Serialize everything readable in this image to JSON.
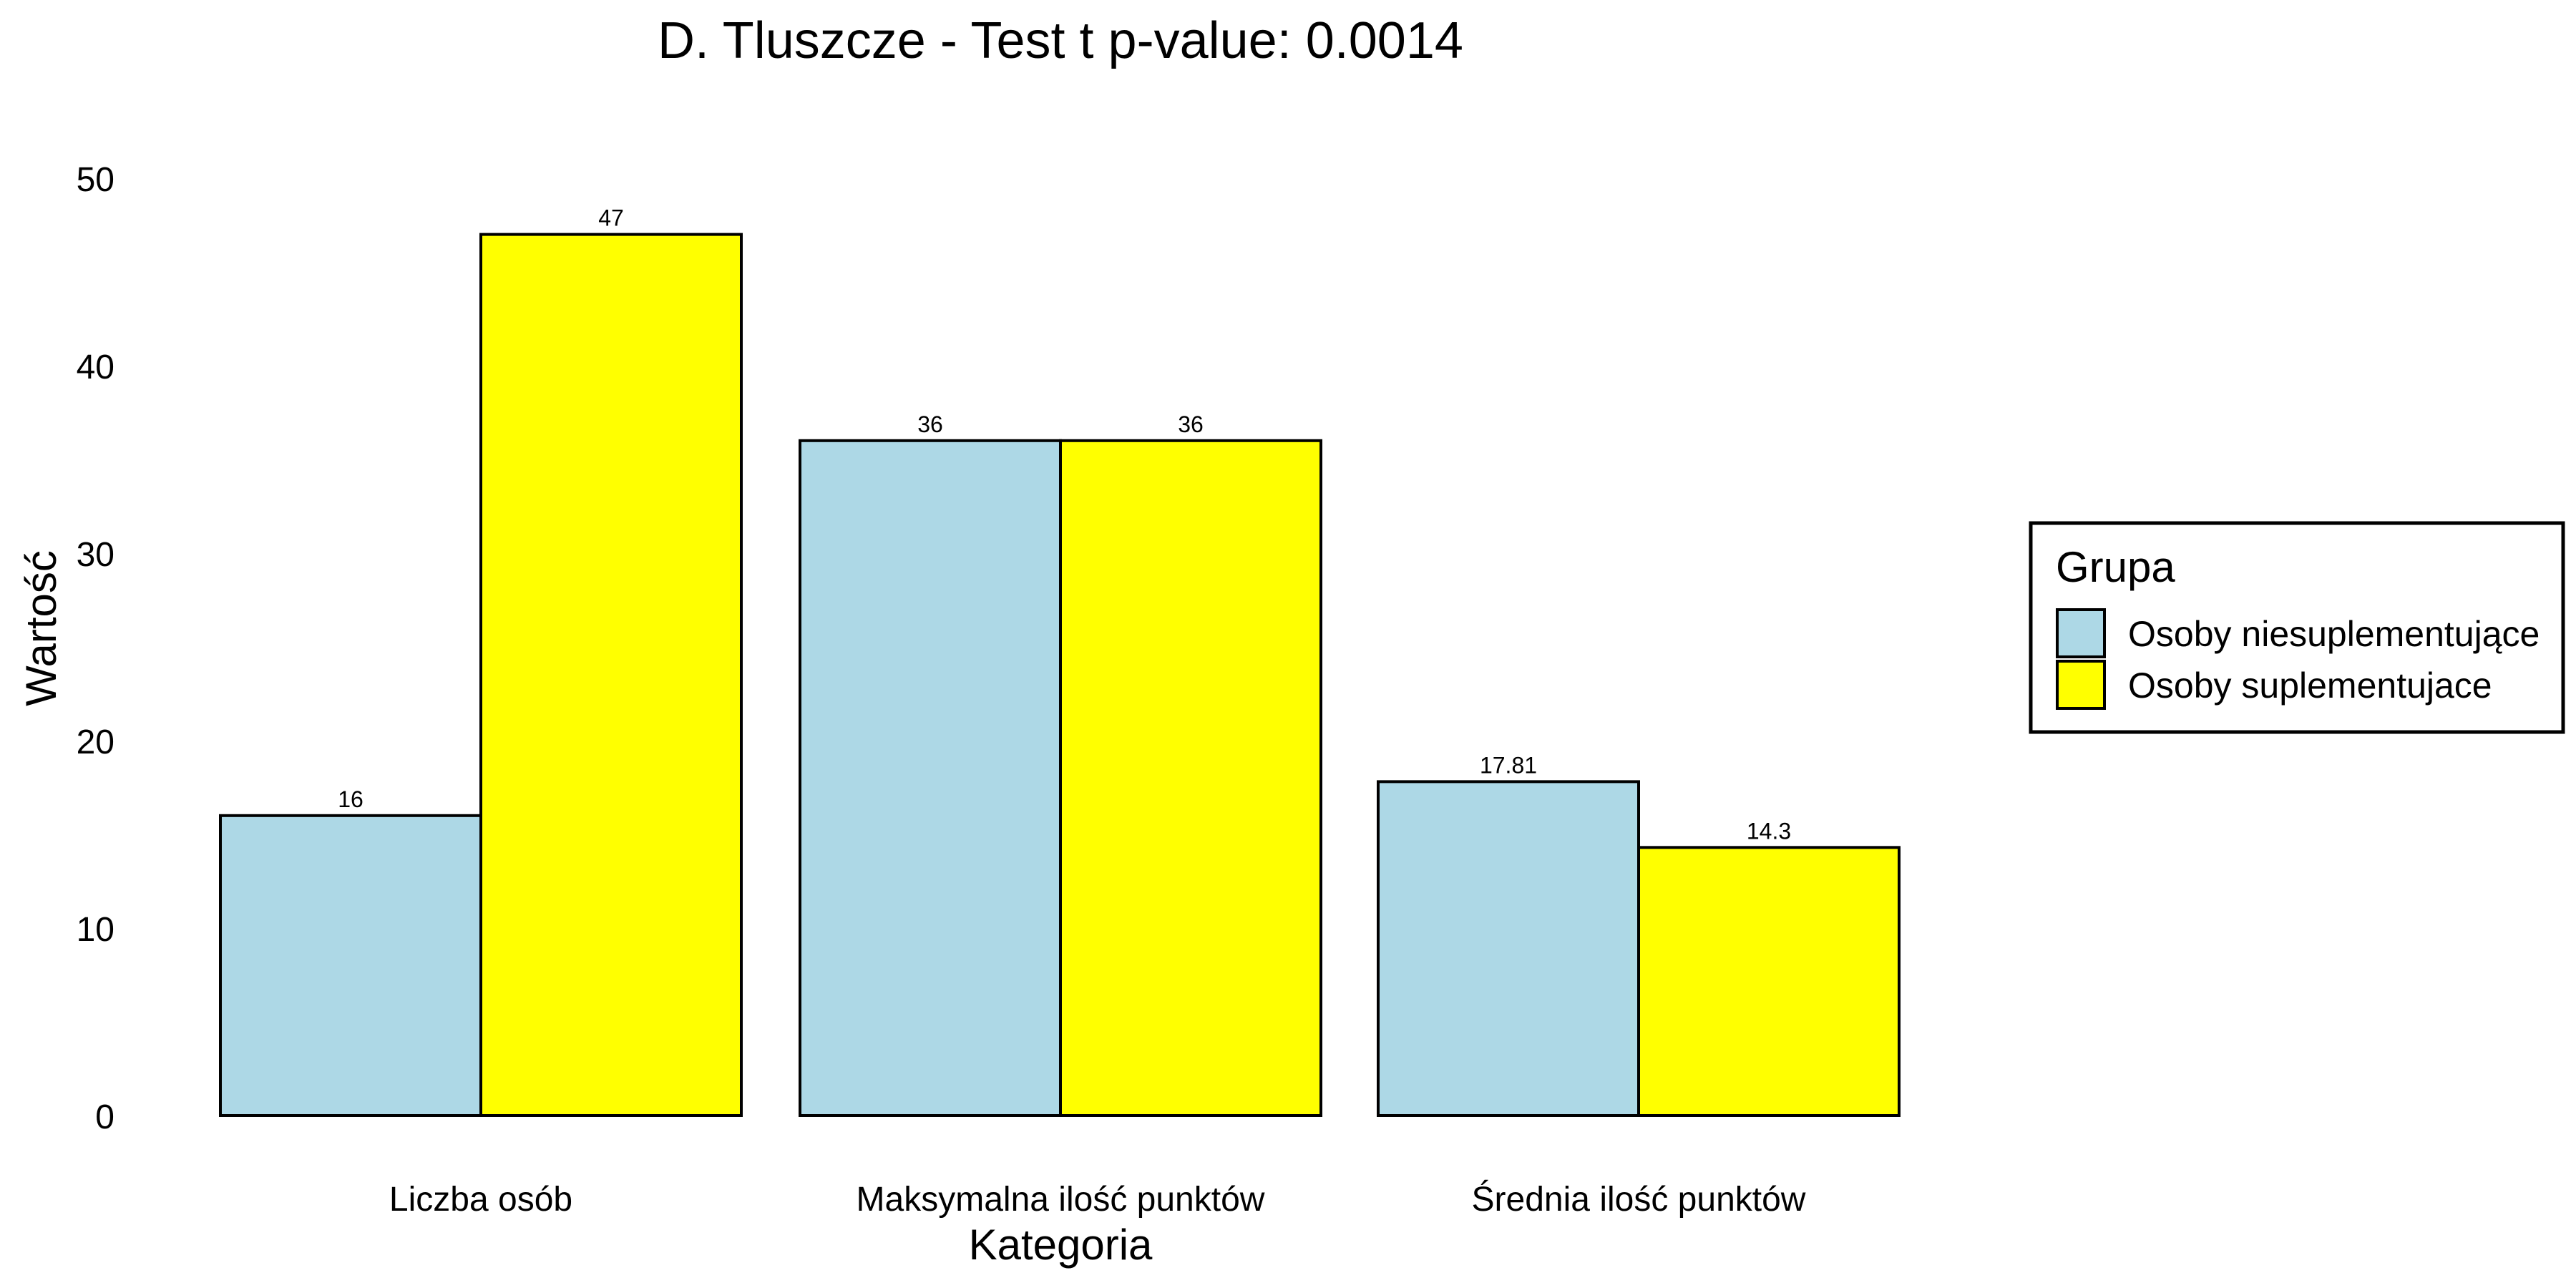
{
  "chart_data": {
    "type": "bar",
    "title": "D. Tluszcze - Test t p-value: 0.0014",
    "xlabel": "Kategoria",
    "ylabel": "Wartość",
    "categories": [
      "Liczba osób",
      "Maksymalna ilość punktów",
      "Średnia ilość punktów"
    ],
    "series": [
      {
        "name": "Osoby niesuplementujące",
        "color": "#add8e6",
        "values": [
          16,
          36,
          17.81
        ],
        "labels": [
          "16",
          "36",
          "17.81"
        ]
      },
      {
        "name": "Osoby suplementujace",
        "color": "#ffff00",
        "values": [
          47,
          36,
          14.3
        ],
        "labels": [
          "47",
          "36",
          "14.3"
        ]
      }
    ],
    "ylim": [
      0,
      50
    ],
    "yticks": [
      0,
      10,
      20,
      30,
      40,
      50
    ],
    "legend": {
      "title": "Grupa",
      "position": "right"
    },
    "grid": false
  }
}
